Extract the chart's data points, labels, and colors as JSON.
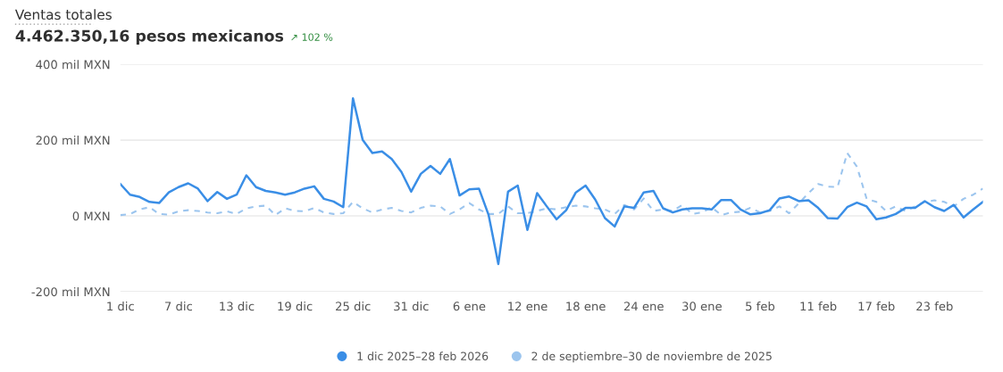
{
  "chart_data": {
    "type": "line",
    "title": "Ventas totales",
    "subtitle": "4.462.350,16 pesos mexicanos",
    "annotations": [
      "↗ 102 %"
    ],
    "x": [
      "2025-12-01",
      "2025-12-02",
      "2025-12-03",
      "2025-12-04",
      "2025-12-05",
      "2025-12-06",
      "2025-12-07",
      "2025-12-08",
      "2025-12-09",
      "2025-12-10",
      "2025-12-11",
      "2025-12-12",
      "2025-12-13",
      "2025-12-14",
      "2025-12-15",
      "2025-12-16",
      "2025-12-17",
      "2025-12-18",
      "2025-12-19",
      "2025-12-20",
      "2025-12-21",
      "2025-12-22",
      "2025-12-23",
      "2025-12-24",
      "2025-12-25",
      "2025-12-26",
      "2025-12-27",
      "2025-12-28",
      "2025-12-29",
      "2025-12-30",
      "2025-12-31",
      "2026-01-01",
      "2026-01-02",
      "2026-01-03",
      "2026-01-04",
      "2026-01-05",
      "2026-01-06",
      "2026-01-07",
      "2026-01-08",
      "2026-01-09",
      "2026-01-10",
      "2026-01-11",
      "2026-01-12",
      "2026-01-13",
      "2026-01-14",
      "2026-01-15",
      "2026-01-16",
      "2026-01-17",
      "2026-01-18",
      "2026-01-19",
      "2026-01-20",
      "2026-01-21",
      "2026-01-22",
      "2026-01-23",
      "2026-01-24",
      "2026-01-25",
      "2026-01-26",
      "2026-01-27",
      "2026-01-28",
      "2026-01-29",
      "2026-01-30",
      "2026-01-31",
      "2026-02-01",
      "2026-02-02",
      "2026-02-03",
      "2026-02-04",
      "2026-02-05",
      "2026-02-06",
      "2026-02-07",
      "2026-02-08",
      "2026-02-09",
      "2026-02-10",
      "2026-02-11",
      "2026-02-12",
      "2026-02-13",
      "2026-02-14",
      "2026-02-15",
      "2026-02-16",
      "2026-02-17",
      "2026-02-18",
      "2026-02-19",
      "2026-02-20",
      "2026-02-21",
      "2026-02-22",
      "2026-02-23",
      "2026-02-24",
      "2026-02-25",
      "2026-02-26",
      "2026-02-27",
      "2026-02-28"
    ],
    "series": [
      {
        "name": "1 dic 2025–28 feb 2026",
        "color": "#3a8ee6",
        "line_style": "solid",
        "values": [
          84,
          56,
          50,
          37,
          34,
          62,
          76,
          86,
          72,
          39,
          63,
          45,
          56,
          107,
          76,
          66,
          62,
          56,
          62,
          72,
          78,
          45,
          38,
          23,
          310,
          201,
          166,
          170,
          150,
          116,
          64,
          111,
          132,
          111,
          150,
          54,
          70,
          72,
          2,
          -127,
          64,
          80,
          -37,
          60,
          25,
          -9,
          15,
          62,
          80,
          43,
          -6,
          -28,
          25,
          21,
          62,
          66,
          20,
          9,
          17,
          20,
          20,
          17,
          42,
          42,
          17,
          4,
          7,
          15,
          46,
          51,
          39,
          41,
          21,
          -6,
          -7,
          23,
          35,
          25,
          -9,
          -4,
          5,
          21,
          21,
          39,
          23,
          13,
          29,
          -4,
          17,
          37
        ]
      },
      {
        "name": "2 de septiembre–30 de noviembre de 2025",
        "color": "#9cc5ee",
        "line_style": "dashed",
        "values": [
          2,
          5,
          17,
          23,
          5,
          3,
          12,
          15,
          13,
          9,
          7,
          12,
          5,
          20,
          25,
          27,
          2,
          20,
          13,
          12,
          21,
          9,
          5,
          7,
          37,
          20,
          9,
          17,
          21,
          13,
          9,
          21,
          27,
          25,
          5,
          17,
          34,
          17,
          5,
          5,
          25,
          7,
          7,
          13,
          20,
          17,
          23,
          27,
          25,
          20,
          17,
          5,
          29,
          17,
          46,
          13,
          17,
          13,
          29,
          5,
          9,
          23,
          2,
          9,
          11,
          21,
          9,
          13,
          25,
          7,
          33,
          60,
          84,
          77,
          76,
          166,
          130,
          45,
          37,
          13,
          25,
          13,
          25,
          37,
          41,
          37,
          25,
          45,
          56,
          72
        ]
      }
    ],
    "xlim": [
      "2025-12-01",
      "2026-02-28"
    ],
    "xticks": [
      {
        "value": "2025-12-01",
        "label": "1 dic"
      },
      {
        "value": "2025-12-07",
        "label": "7 dic"
      },
      {
        "value": "2025-12-13",
        "label": "13 dic"
      },
      {
        "value": "2025-12-19",
        "label": "19 dic"
      },
      {
        "value": "2025-12-25",
        "label": "25 dic"
      },
      {
        "value": "2025-12-31",
        "label": "31 dic"
      },
      {
        "value": "2026-01-06",
        "label": "6 ene"
      },
      {
        "value": "2026-01-12",
        "label": "12 ene"
      },
      {
        "value": "2026-01-18",
        "label": "18 ene"
      },
      {
        "value": "2026-01-24",
        "label": "24 ene"
      },
      {
        "value": "2026-01-30",
        "label": "30 ene"
      },
      {
        "value": "2026-02-05",
        "label": "5 feb"
      },
      {
        "value": "2026-02-11",
        "label": "11 feb"
      },
      {
        "value": "2026-02-17",
        "label": "17 feb"
      },
      {
        "value": "2026-02-23",
        "label": "23 feb"
      }
    ],
    "ylim": [
      -200,
      400
    ],
    "yticks": [
      {
        "value": -200,
        "label": "-200 mil MXN"
      },
      {
        "value": 0,
        "label": "0 MXN"
      },
      {
        "value": 200,
        "label": "200 mil MXN"
      },
      {
        "value": 400,
        "label": "400 mil MXN"
      }
    ],
    "grid": "y",
    "legend": "bottom"
  }
}
